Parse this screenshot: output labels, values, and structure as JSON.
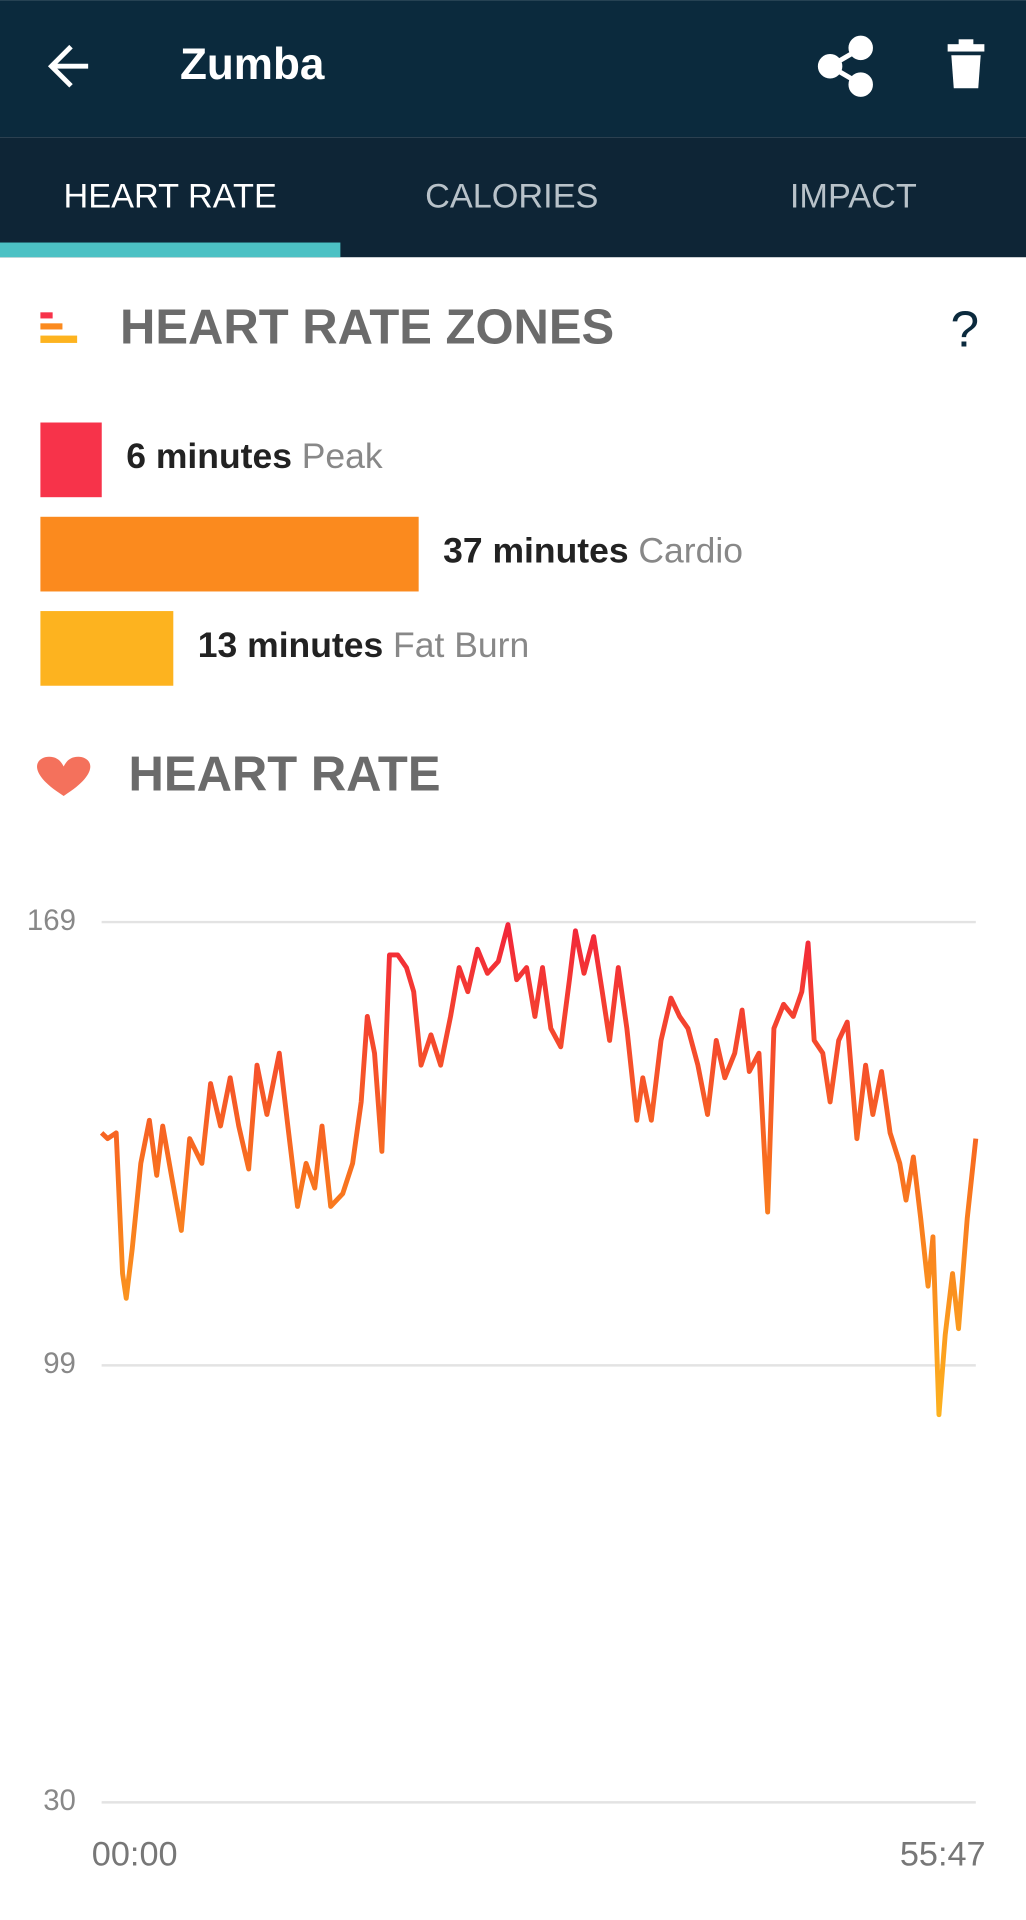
{
  "header": {
    "title": "Zumba"
  },
  "tabs": [
    "HEART RATE",
    "CALORIES",
    "IMPACT"
  ],
  "zones": {
    "title": "HEART RATE ZONES",
    "help": "?",
    "items": [
      {
        "minutes": 6,
        "label": "6 minutes",
        "zone": "Peak",
        "color": "#f7334a"
      },
      {
        "minutes": 37,
        "label": "37 minutes",
        "zone": "Cardio",
        "color": "#fb8a1e"
      },
      {
        "minutes": 13,
        "label": "13 minutes",
        "zone": "Fat Burn",
        "color": "#fdb31f"
      }
    ]
  },
  "chart_data": {
    "type": "line",
    "title": "HEART RATE",
    "x": [
      0,
      23,
      56,
      80,
      94,
      117,
      150,
      183,
      211,
      234,
      267,
      305,
      337,
      384,
      417,
      455,
      492,
      525,
      563,
      595,
      633,
      680,
      713,
      750,
      783,
      816,
      844,
      877,
      923,
      961,
      994,
      1017,
      1045,
      1073,
      1102,
      1134,
      1167,
      1195,
      1223,
      1261,
      1298,
      1336,
      1369,
      1402,
      1439,
      1477,
      1519,
      1556,
      1589,
      1627,
      1659,
      1688,
      1720,
      1758,
      1791,
      1814,
      1847,
      1884,
      1917,
      1945,
      1978,
      2011,
      2049,
      2072,
      2105,
      2142,
      2180,
      2213,
      2245,
      2283,
      2320,
      2353,
      2386,
      2424,
      2452,
      2480,
      2517,
      2550,
      2574,
      2611,
      2648,
      2681,
      2705,
      2728,
      2761,
      2789,
      2822,
      2855,
      2892,
      2925,
      2953,
      2986,
      3019,
      3056,
      3080,
      3108,
      3136,
      3164,
      3183,
      3206,
      3230,
      3258,
      3281,
      3314,
      3347
    ],
    "series": [
      {
        "values": [
          135.7,
          134.8,
          135.7,
          113.5,
          109.6,
          117.4,
          130.9,
          137.7,
          129,
          136.8,
          129,
          120.3,
          134.8,
          130.9,
          143.5,
          136.8,
          144.4,
          136.8,
          130,
          146.4,
          138.6,
          148.3,
          136.8,
          124.1,
          130.9,
          127,
          136.8,
          124.1,
          126.1,
          130.9,
          140.6,
          154.1,
          148.3,
          132.8,
          163.8,
          163.8,
          161.8,
          158,
          146.4,
          151.2,
          146.4,
          154.1,
          161.8,
          158,
          164.7,
          160.9,
          162.8,
          168.6,
          159.9,
          161.8,
          154.1,
          161.8,
          152.2,
          149.3,
          159.9,
          167.6,
          160.9,
          166.7,
          158,
          150.3,
          161.8,
          152.2,
          137.7,
          144.4,
          137.7,
          150.3,
          157,
          154.1,
          152.2,
          146.4,
          138.6,
          150.3,
          144.4,
          148.3,
          155.1,
          145.4,
          148.3,
          123.2,
          152.2,
          156,
          154.1,
          158,
          165.7,
          150.3,
          148.3,
          140.6,
          150.3,
          153.2,
          134.8,
          146.4,
          138.6,
          145.4,
          135.7,
          130.9,
          125.1,
          131.9,
          122.2,
          111.5,
          119.3,
          91.2,
          103.8,
          113.5,
          104.8,
          122.2,
          134.8
        ]
      }
    ],
    "xlim": [
      0,
      3347
    ],
    "xticks": [
      {
        "value": 0,
        "label": "00:00"
      },
      {
        "value": 3347,
        "label": "55:47"
      }
    ],
    "ylim": [
      30,
      169
    ],
    "yticks": [
      30,
      99,
      169
    ],
    "grid": true
  }
}
